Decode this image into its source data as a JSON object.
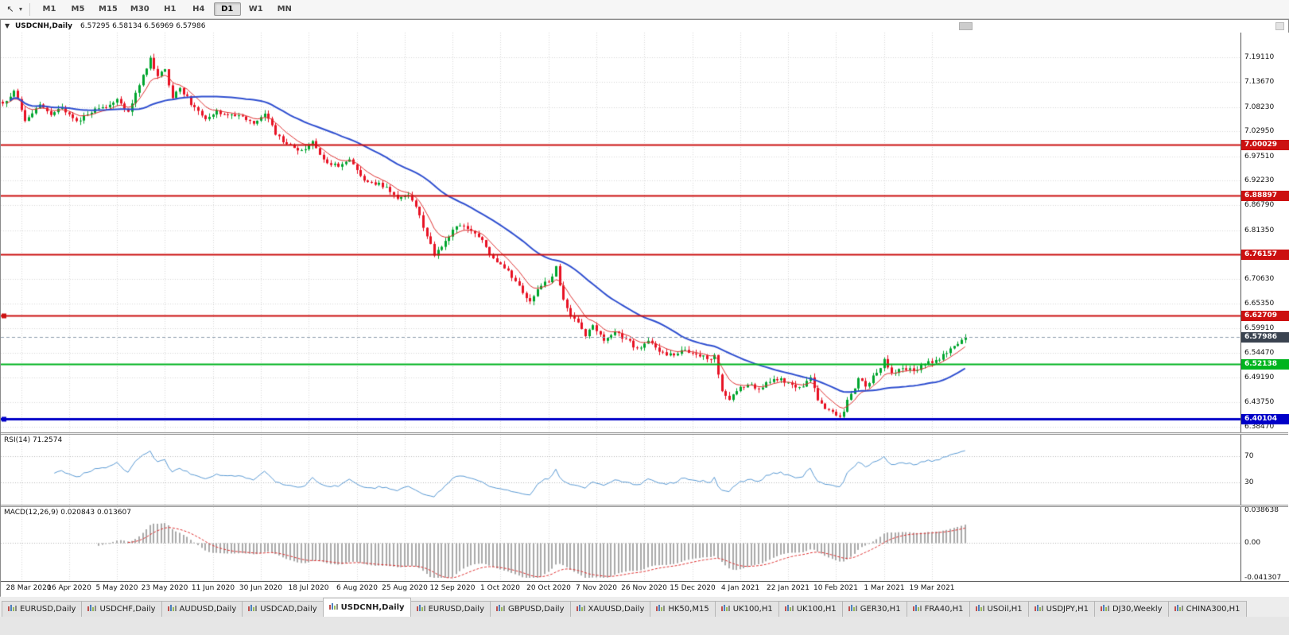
{
  "toolbar": {
    "timeframes": [
      "M1",
      "M5",
      "M15",
      "M30",
      "H1",
      "H4",
      "D1",
      "W1",
      "MN"
    ],
    "active_timeframe": "D1"
  },
  "chart": {
    "title": {
      "collapse_icon": "▼",
      "symbol": "USDCNH,Daily",
      "ohlc": "6.57295 6.58134 6.56969 6.57986"
    },
    "price_axis_labels": [
      "7.19110",
      "7.13670",
      "7.08230",
      "7.02950",
      "6.97510",
      "6.92230",
      "6.86790",
      "6.81350",
      "6.70630",
      "6.65350",
      "6.59910",
      "6.54470",
      "6.49190",
      "6.43750",
      "6.38470"
    ],
    "levels": [
      {
        "price": 7.00029,
        "label": "7.00029",
        "color": "#cc1111",
        "width": 2
      },
      {
        "price": 6.88897,
        "label": "6.88897",
        "color": "#cc1111",
        "width": 2
      },
      {
        "price": 6.76157,
        "label": "6.76157",
        "color": "#cc1111",
        "width": 2
      },
      {
        "price": 6.62709,
        "label": "6.62709",
        "color": "#cc1111",
        "width": 2,
        "handles": true
      },
      {
        "price": 6.52138,
        "label": "6.52138",
        "color": "#00b41e",
        "width": 2
      },
      {
        "price": 6.40104,
        "label": "6.40104",
        "color": "#0000c8",
        "width": 3,
        "handles": true
      }
    ],
    "current_price": {
      "value": 6.57986,
      "label": "6.57986",
      "badge_color": "#3a4350"
    }
  },
  "rsi": {
    "label": "RSI(14) 71.2574",
    "axis_labels": [
      "70",
      "30"
    ]
  },
  "macd": {
    "label": "MACD(12,26,9) 0.020843 0.013607",
    "axis_labels": [
      "0.038638",
      "0.00",
      "-0.041307"
    ]
  },
  "date_axis": {
    "labels": [
      "28 Mar 2020",
      "16 Apr 2020",
      "5 May 2020",
      "23 May 2020",
      "11 Jun 2020",
      "30 Jun 2020",
      "18 Jul 2020",
      "6 Aug 2020",
      "25 Aug 2020",
      "12 Sep 2020",
      "1 Oct 2020",
      "20 Oct 2020",
      "7 Nov 2020",
      "26 Nov 2020",
      "15 Dec 2020",
      "4 Jan 2021",
      "22 Jan 2021",
      "10 Feb 2021",
      "1 Mar 2021",
      "19 Mar 2021"
    ]
  },
  "tabs": {
    "active_index": 4,
    "items": [
      "EURUSD,Daily",
      "USDCHF,Daily",
      "AUDUSD,Daily",
      "USDCAD,Daily",
      "USDCNH,Daily",
      "EURUSD,Daily",
      "GBPUSD,Daily",
      "XAUUSD,Daily",
      "HK50,M15",
      "UK100,H1",
      "UK100,H1",
      "GER30,H1",
      "FRA40,H1",
      "USOil,H1",
      "USDJPY,H1",
      "DJ30,Weekly",
      "CHINA300,H1"
    ]
  },
  "chart_data": {
    "type": "candlestick",
    "symbol": "USDCNH",
    "timeframe": "Daily",
    "n_candles": 262,
    "price_range": [
      6.372,
      7.245
    ],
    "last_ohlc": {
      "open": 6.57295,
      "high": 6.58134,
      "low": 6.56969,
      "close": 6.57986
    },
    "close_anchors": [
      [
        0,
        7.09
      ],
      [
        3,
        7.118
      ],
      [
        6,
        7.052
      ],
      [
        10,
        7.088
      ],
      [
        13,
        7.065
      ],
      [
        16,
        7.082
      ],
      [
        20,
        7.052
      ],
      [
        24,
        7.07
      ],
      [
        27,
        7.082
      ],
      [
        31,
        7.1
      ],
      [
        34,
        7.072
      ],
      [
        37,
        7.13
      ],
      [
        40,
        7.19
      ],
      [
        42,
        7.15
      ],
      [
        44,
        7.165
      ],
      [
        46,
        7.102
      ],
      [
        48,
        7.124
      ],
      [
        52,
        7.082
      ],
      [
        55,
        7.056
      ],
      [
        58,
        7.075
      ],
      [
        62,
        7.066
      ],
      [
        65,
        7.062
      ],
      [
        68,
        7.046
      ],
      [
        71,
        7.068
      ],
      [
        74,
        7.022
      ],
      [
        78,
        7.0
      ],
      [
        81,
        6.988
      ],
      [
        84,
        7.008
      ],
      [
        87,
        6.968
      ],
      [
        91,
        6.952
      ],
      [
        94,
        6.968
      ],
      [
        97,
        6.932
      ],
      [
        100,
        6.918
      ],
      [
        104,
        6.908
      ],
      [
        107,
        6.882
      ],
      [
        110,
        6.89
      ],
      [
        113,
        6.846
      ],
      [
        115,
        6.8
      ],
      [
        117,
        6.758
      ],
      [
        120,
        6.79
      ],
      [
        123,
        6.822
      ],
      [
        127,
        6.812
      ],
      [
        130,
        6.792
      ],
      [
        133,
        6.752
      ],
      [
        136,
        6.73
      ],
      [
        139,
        6.702
      ],
      [
        143,
        6.658
      ],
      [
        146,
        6.692
      ],
      [
        148,
        6.7
      ],
      [
        150,
        6.735
      ],
      [
        152,
        6.662
      ],
      [
        154,
        6.625
      ],
      [
        156,
        6.612
      ],
      [
        158,
        6.582
      ],
      [
        160,
        6.606
      ],
      [
        163,
        6.572
      ],
      [
        166,
        6.592
      ],
      [
        169,
        6.576
      ],
      [
        172,
        6.556
      ],
      [
        175,
        6.572
      ],
      [
        178,
        6.548
      ],
      [
        182,
        6.54
      ],
      [
        185,
        6.552
      ],
      [
        188,
        6.542
      ],
      [
        191,
        6.532
      ],
      [
        193,
        6.541
      ],
      [
        195,
        6.462
      ],
      [
        197,
        6.443
      ],
      [
        199,
        6.462
      ],
      [
        202,
        6.476
      ],
      [
        205,
        6.466
      ],
      [
        208,
        6.482
      ],
      [
        211,
        6.49
      ],
      [
        214,
        6.476
      ],
      [
        217,
        6.472
      ],
      [
        219,
        6.492
      ],
      [
        221,
        6.442
      ],
      [
        224,
        6.421
      ],
      [
        227,
        6.406
      ],
      [
        230,
        6.456
      ],
      [
        232,
        6.49
      ],
      [
        234,
        6.472
      ],
      [
        237,
        6.502
      ],
      [
        239,
        6.532
      ],
      [
        241,
        6.502
      ],
      [
        244,
        6.512
      ],
      [
        247,
        6.506
      ],
      [
        250,
        6.52
      ],
      [
        253,
        6.53
      ],
      [
        256,
        6.545
      ],
      [
        259,
        6.565
      ],
      [
        261,
        6.57986
      ]
    ],
    "horizontal_levels": [
      7.00029,
      6.88897,
      6.76157,
      6.62709,
      6.52138,
      6.40104
    ],
    "rsi": {
      "period": 14,
      "current": 71.2574,
      "levels": [
        70,
        30
      ]
    },
    "macd": {
      "fast": 12,
      "slow": 26,
      "signal": 9,
      "current_main": 0.020843,
      "current_signal": 0.013607,
      "axis_range": [
        -0.041307,
        0.038638
      ]
    },
    "colors": {
      "up": "#00a52e",
      "down": "#e81123",
      "ma_fast": "#e03232",
      "ma_slow": "#2f4fd0",
      "rsi_line": "#5b9bd5",
      "macd_hist": "#a9a9a9",
      "macd_signal": "#e03030"
    }
  }
}
